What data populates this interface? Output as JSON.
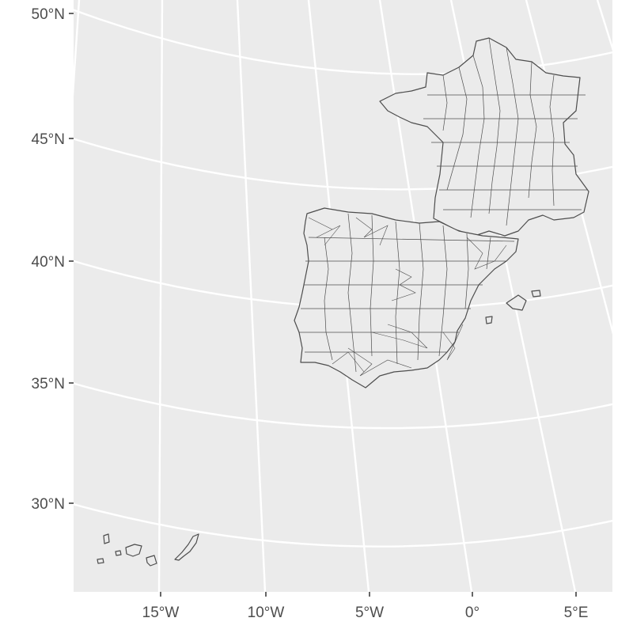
{
  "map": {
    "projection": "conic",
    "panel_background": "#ebebeb",
    "graticule_color": "#ffffff",
    "boundary_color": "#4d4d4d",
    "land_fill": "#ebebeb",
    "regions": [
      "France (departments)",
      "Spain (municipalities)",
      "Portugal (municipalities)",
      "Balearic Islands",
      "Canary Islands"
    ],
    "y_axis": {
      "labels": [
        "50°N",
        "45°N",
        "40°N",
        "35°N",
        "30°N"
      ]
    },
    "x_axis": {
      "labels": [
        "15°W",
        "10°W",
        "5°W",
        "0°",
        "5°E"
      ]
    }
  }
}
